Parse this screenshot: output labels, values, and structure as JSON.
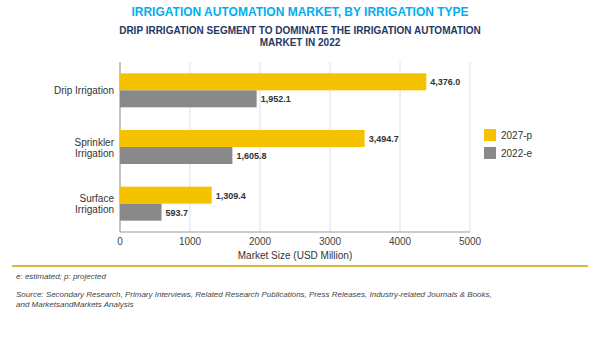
{
  "chart_data": {
    "type": "bar",
    "orientation": "horizontal",
    "title": "IRRIGATION AUTOMATION MARKET, BY IRRIGATION TYPE",
    "subtitle": "DRIP IRRIGATION SEGMENT TO DOMINATE THE IRRIGATION AUTOMATION\nMARKET IN 2022",
    "categories": [
      "Surface\nIrrigation",
      "Sprinkler\nIrrigation",
      "Drip Irrigation"
    ],
    "series": [
      {
        "name": "2027-p",
        "color": "#F5C200",
        "values": [
          1309.4,
          3494.7,
          4376.0
        ],
        "value_labels": [
          "1,309.4",
          "3,494.7",
          "4,376.0"
        ]
      },
      {
        "name": "2022-e",
        "color": "#898989",
        "values": [
          593.7,
          1605.8,
          1952.1
        ],
        "value_labels": [
          "593.7",
          "1,605.8",
          "1,952.1"
        ]
      }
    ],
    "x_label": "Market Size (USD Million)",
    "xlim": [
      0,
      5000
    ],
    "xticks": [
      0,
      1000,
      2000,
      3000,
      4000,
      5000
    ],
    "grid": true,
    "legend": "right",
    "data_labels": true,
    "annotations": [
      "e: estimated; p: projected",
      "Source: Secondary Research, Primary Interviews, Related Research Publications, Press Releases, Industry-related Journals & Books,\nand MarketsandMarkets Analysis"
    ]
  }
}
